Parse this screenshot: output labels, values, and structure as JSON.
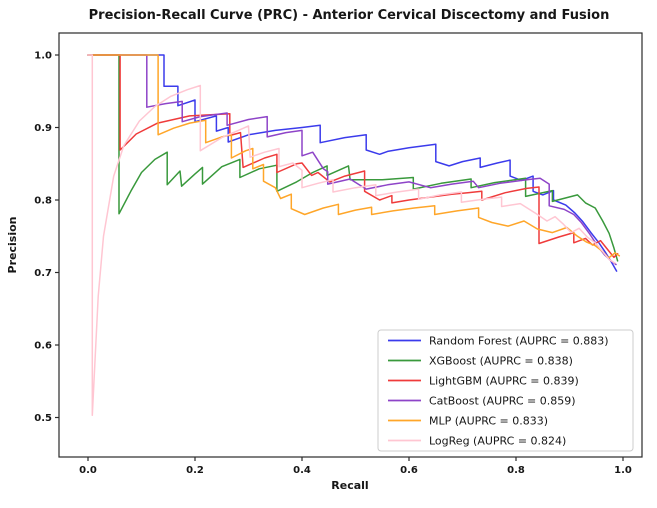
{
  "chart_data": {
    "type": "line",
    "title": "Precision-Recall Curve (PRC) - Anterior Cervical Discectomy and Fusion",
    "xlabel": "Recall",
    "ylabel": "Precision",
    "x_ticks": [
      0.0,
      0.2,
      0.4,
      0.6,
      0.8,
      1.0
    ],
    "y_ticks": [
      0.5,
      0.6,
      0.7,
      0.8,
      0.9,
      1.0
    ],
    "xlim": [
      -0.054,
      1.036
    ],
    "ylim": [
      0.445,
      1.03
    ],
    "grid": false,
    "legend_position": "lower right",
    "series": [
      {
        "name": "Random Forest",
        "auprc": 0.883,
        "label": "Random Forest (AUPRC = 0.883)",
        "color": "#3b3bec",
        "points": [
          [
            0,
            1
          ],
          [
            0.142,
            1
          ],
          [
            0.142,
            0.957
          ],
          [
            0.168,
            0.957
          ],
          [
            0.168,
            0.93
          ],
          [
            0.2,
            0.938
          ],
          [
            0.2,
            0.908
          ],
          [
            0.24,
            0.916
          ],
          [
            0.24,
            0.895
          ],
          [
            0.262,
            0.9
          ],
          [
            0.262,
            0.88
          ],
          [
            0.3,
            0.89
          ],
          [
            0.35,
            0.896
          ],
          [
            0.4,
            0.9
          ],
          [
            0.434,
            0.903
          ],
          [
            0.434,
            0.879
          ],
          [
            0.48,
            0.886
          ],
          [
            0.52,
            0.89
          ],
          [
            0.52,
            0.869
          ],
          [
            0.545,
            0.863
          ],
          [
            0.56,
            0.867
          ],
          [
            0.6,
            0.872
          ],
          [
            0.65,
            0.877
          ],
          [
            0.65,
            0.853
          ],
          [
            0.675,
            0.847
          ],
          [
            0.7,
            0.853
          ],
          [
            0.733,
            0.858
          ],
          [
            0.733,
            0.845
          ],
          [
            0.765,
            0.851
          ],
          [
            0.789,
            0.855
          ],
          [
            0.789,
            0.833
          ],
          [
            0.81,
            0.827
          ],
          [
            0.832,
            0.833
          ],
          [
            0.832,
            0.812
          ],
          [
            0.85,
            0.807
          ],
          [
            0.87,
            0.813
          ],
          [
            0.87,
            0.8
          ],
          [
            0.893,
            0.793
          ],
          [
            0.91,
            0.782
          ],
          [
            0.925,
            0.77
          ],
          [
            0.94,
            0.755
          ],
          [
            0.955,
            0.741
          ],
          [
            0.967,
            0.728
          ],
          [
            0.978,
            0.715
          ],
          [
            0.988,
            0.702
          ]
        ]
      },
      {
        "name": "XGBoost",
        "auprc": 0.838,
        "label": "XGBoost (AUPRC = 0.838)",
        "color": "#39993c",
        "points": [
          [
            0,
            1
          ],
          [
            0.058,
            1
          ],
          [
            0.058,
            0.781
          ],
          [
            0.08,
            0.812
          ],
          [
            0.1,
            0.838
          ],
          [
            0.125,
            0.856
          ],
          [
            0.148,
            0.866
          ],
          [
            0.148,
            0.821
          ],
          [
            0.172,
            0.84
          ],
          [
            0.175,
            0.819
          ],
          [
            0.2,
            0.836
          ],
          [
            0.214,
            0.845
          ],
          [
            0.214,
            0.822
          ],
          [
            0.25,
            0.846
          ],
          [
            0.284,
            0.856
          ],
          [
            0.284,
            0.831
          ],
          [
            0.32,
            0.843
          ],
          [
            0.353,
            0.848
          ],
          [
            0.353,
            0.812
          ],
          [
            0.39,
            0.825
          ],
          [
            0.42,
            0.838
          ],
          [
            0.447,
            0.847
          ],
          [
            0.447,
            0.834
          ],
          [
            0.487,
            0.847
          ],
          [
            0.49,
            0.828
          ],
          [
            0.55,
            0.828
          ],
          [
            0.608,
            0.831
          ],
          [
            0.608,
            0.815
          ],
          [
            0.66,
            0.823
          ],
          [
            0.716,
            0.829
          ],
          [
            0.716,
            0.817
          ],
          [
            0.76,
            0.824
          ],
          [
            0.818,
            0.83
          ],
          [
            0.818,
            0.805
          ],
          [
            0.868,
            0.813
          ],
          [
            0.868,
            0.798
          ],
          [
            0.915,
            0.807
          ],
          [
            0.93,
            0.796
          ],
          [
            0.948,
            0.789
          ],
          [
            0.962,
            0.771
          ],
          [
            0.974,
            0.754
          ],
          [
            0.983,
            0.734
          ],
          [
            0.99,
            0.716
          ]
        ]
      },
      {
        "name": "LightGBM",
        "auprc": 0.839,
        "label": "LightGBM (AUPRC = 0.839)",
        "color": "#ef3b3b",
        "points": [
          [
            0,
            1
          ],
          [
            0.06,
            1
          ],
          [
            0.06,
            0.869
          ],
          [
            0.09,
            0.891
          ],
          [
            0.13,
            0.906
          ],
          [
            0.19,
            0.916
          ],
          [
            0.265,
            0.919
          ],
          [
            0.265,
            0.889
          ],
          [
            0.285,
            0.893
          ],
          [
            0.29,
            0.845
          ],
          [
            0.33,
            0.858
          ],
          [
            0.353,
            0.863
          ],
          [
            0.353,
            0.838
          ],
          [
            0.39,
            0.85
          ],
          [
            0.4,
            0.851
          ],
          [
            0.418,
            0.834
          ],
          [
            0.43,
            0.838
          ],
          [
            0.452,
            0.825
          ],
          [
            0.48,
            0.833
          ],
          [
            0.517,
            0.84
          ],
          [
            0.517,
            0.812
          ],
          [
            0.545,
            0.8
          ],
          [
            0.568,
            0.806
          ],
          [
            0.568,
            0.796
          ],
          [
            0.6,
            0.8
          ],
          [
            0.64,
            0.804
          ],
          [
            0.68,
            0.808
          ],
          [
            0.71,
            0.81
          ],
          [
            0.736,
            0.812
          ],
          [
            0.736,
            0.8
          ],
          [
            0.78,
            0.81
          ],
          [
            0.82,
            0.816
          ],
          [
            0.843,
            0.818
          ],
          [
            0.843,
            0.74
          ],
          [
            0.88,
            0.749
          ],
          [
            0.908,
            0.755
          ],
          [
            0.908,
            0.741
          ],
          [
            0.93,
            0.747
          ],
          [
            0.943,
            0.738
          ],
          [
            0.958,
            0.744
          ],
          [
            0.972,
            0.731
          ],
          [
            0.983,
            0.721
          ],
          [
            0.99,
            0.726
          ]
        ]
      },
      {
        "name": "CatBoost",
        "auprc": 0.859,
        "label": "CatBoost (AUPRC = 0.859)",
        "color": "#8e44c8",
        "points": [
          [
            0,
            1
          ],
          [
            0.11,
            1
          ],
          [
            0.11,
            0.928
          ],
          [
            0.145,
            0.933
          ],
          [
            0.176,
            0.936
          ],
          [
            0.176,
            0.908
          ],
          [
            0.21,
            0.915
          ],
          [
            0.26,
            0.92
          ],
          [
            0.26,
            0.903
          ],
          [
            0.3,
            0.911
          ],
          [
            0.335,
            0.915
          ],
          [
            0.335,
            0.887
          ],
          [
            0.37,
            0.893
          ],
          [
            0.4,
            0.896
          ],
          [
            0.4,
            0.861
          ],
          [
            0.42,
            0.866
          ],
          [
            0.44,
            0.843
          ],
          [
            0.448,
            0.839
          ],
          [
            0.448,
            0.822
          ],
          [
            0.49,
            0.829
          ],
          [
            0.52,
            0.815
          ],
          [
            0.56,
            0.821
          ],
          [
            0.6,
            0.825
          ],
          [
            0.64,
            0.817
          ],
          [
            0.68,
            0.822
          ],
          [
            0.72,
            0.826
          ],
          [
            0.73,
            0.817
          ],
          [
            0.77,
            0.823
          ],
          [
            0.82,
            0.828
          ],
          [
            0.845,
            0.83
          ],
          [
            0.862,
            0.822
          ],
          [
            0.862,
            0.792
          ],
          [
            0.89,
            0.787
          ],
          [
            0.908,
            0.78
          ],
          [
            0.922,
            0.769
          ],
          [
            0.938,
            0.753
          ],
          [
            0.953,
            0.736
          ],
          [
            0.966,
            0.724
          ],
          [
            0.978,
            0.716
          ],
          [
            0.987,
            0.711
          ]
        ]
      },
      {
        "name": "MLP",
        "auprc": 0.833,
        "label": "MLP (AUPRC = 0.833)",
        "color": "#ffa629",
        "points": [
          [
            0,
            1
          ],
          [
            0.131,
            1
          ],
          [
            0.131,
            0.89
          ],
          [
            0.16,
            0.899
          ],
          [
            0.19,
            0.906
          ],
          [
            0.22,
            0.91
          ],
          [
            0.22,
            0.879
          ],
          [
            0.25,
            0.887
          ],
          [
            0.268,
            0.89
          ],
          [
            0.268,
            0.858
          ],
          [
            0.295,
            0.868
          ],
          [
            0.308,
            0.871
          ],
          [
            0.308,
            0.843
          ],
          [
            0.328,
            0.849
          ],
          [
            0.328,
            0.826
          ],
          [
            0.35,
            0.817
          ],
          [
            0.36,
            0.802
          ],
          [
            0.38,
            0.808
          ],
          [
            0.38,
            0.788
          ],
          [
            0.405,
            0.78
          ],
          [
            0.44,
            0.789
          ],
          [
            0.468,
            0.794
          ],
          [
            0.468,
            0.78
          ],
          [
            0.5,
            0.786
          ],
          [
            0.53,
            0.79
          ],
          [
            0.53,
            0.78
          ],
          [
            0.57,
            0.785
          ],
          [
            0.61,
            0.789
          ],
          [
            0.648,
            0.792
          ],
          [
            0.648,
            0.78
          ],
          [
            0.69,
            0.785
          ],
          [
            0.73,
            0.789
          ],
          [
            0.73,
            0.776
          ],
          [
            0.755,
            0.769
          ],
          [
            0.785,
            0.764
          ],
          [
            0.815,
            0.771
          ],
          [
            0.84,
            0.76
          ],
          [
            0.868,
            0.755
          ],
          [
            0.895,
            0.762
          ],
          [
            0.915,
            0.75
          ],
          [
            0.932,
            0.742
          ],
          [
            0.948,
            0.737
          ],
          [
            0.962,
            0.729
          ],
          [
            0.973,
            0.72
          ],
          [
            0.985,
            0.727
          ],
          [
            0.993,
            0.723
          ]
        ]
      },
      {
        "name": "LogReg",
        "auprc": 0.824,
        "label": "LogReg (AUPRC = 0.824)",
        "color": "#ffc6d2",
        "points": [
          [
            0,
            1
          ],
          [
            0.008,
            1
          ],
          [
            0.008,
            0.503
          ],
          [
            0.019,
            0.667
          ],
          [
            0.029,
            0.75
          ],
          [
            0.048,
            0.833
          ],
          [
            0.067,
            0.875
          ],
          [
            0.096,
            0.909
          ],
          [
            0.125,
            0.929
          ],
          [
            0.155,
            0.943
          ],
          [
            0.185,
            0.952
          ],
          [
            0.21,
            0.958
          ],
          [
            0.21,
            0.868
          ],
          [
            0.25,
            0.886
          ],
          [
            0.3,
            0.902
          ],
          [
            0.303,
            0.859
          ],
          [
            0.33,
            0.866
          ],
          [
            0.357,
            0.871
          ],
          [
            0.357,
            0.846
          ],
          [
            0.383,
            0.851
          ],
          [
            0.4,
            0.841
          ],
          [
            0.4,
            0.817
          ],
          [
            0.43,
            0.823
          ],
          [
            0.458,
            0.828
          ],
          [
            0.458,
            0.811
          ],
          [
            0.5,
            0.817
          ],
          [
            0.538,
            0.821
          ],
          [
            0.538,
            0.806
          ],
          [
            0.578,
            0.811
          ],
          [
            0.618,
            0.815
          ],
          [
            0.618,
            0.801
          ],
          [
            0.658,
            0.807
          ],
          [
            0.698,
            0.811
          ],
          [
            0.698,
            0.797
          ],
          [
            0.738,
            0.801
          ],
          [
            0.773,
            0.804
          ],
          [
            0.773,
            0.791
          ],
          [
            0.808,
            0.795
          ],
          [
            0.838,
            0.781
          ],
          [
            0.858,
            0.771
          ],
          [
            0.873,
            0.777
          ],
          [
            0.888,
            0.767
          ],
          [
            0.903,
            0.755
          ],
          [
            0.918,
            0.761
          ],
          [
            0.933,
            0.749
          ],
          [
            0.948,
            0.741
          ],
          [
            0.962,
            0.729
          ],
          [
            0.974,
            0.718
          ],
          [
            0.985,
            0.713
          ]
        ]
      }
    ]
  }
}
